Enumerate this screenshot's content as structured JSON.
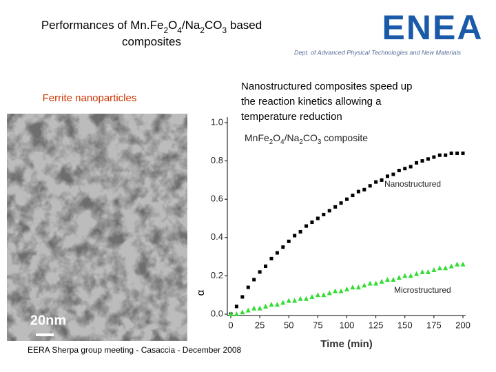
{
  "header": {
    "title_lines": [
      [
        "Performances of Mn.Fe",
        "2",
        "O",
        "4",
        "/Na",
        "2",
        "CO",
        "3",
        " based"
      ],
      [
        "composites"
      ]
    ],
    "logo": "ENEA",
    "dept": "Dept. of Advanced Physical Technologies and New Materials"
  },
  "image": {
    "caption": "Ferrite nanoparticles",
    "scale": "20nm"
  },
  "statement": [
    "Nanostructured composites speed up",
    "the reaction kinetics allowing a",
    "temperature reduction"
  ],
  "footer": "EERA Sherpa group meeting - Casaccia - December 2008",
  "chart_data": {
    "type": "scatter",
    "title_parts": [
      "MnFe",
      "2",
      "O",
      "4",
      "/Na",
      "2",
      "CO",
      "3",
      " composite"
    ],
    "x_label": "Time (min)",
    "y_label": "α",
    "x": [
      0,
      5,
      10,
      15,
      20,
      25,
      30,
      35,
      40,
      45,
      50,
      55,
      60,
      65,
      70,
      75,
      80,
      85,
      90,
      95,
      100,
      105,
      110,
      115,
      120,
      125,
      130,
      135,
      140,
      145,
      150,
      155,
      160,
      165,
      170,
      175,
      180,
      185,
      190,
      195,
      200
    ],
    "series": [
      {
        "name": "Nanostructured",
        "color": "#000000",
        "marker": "square",
        "values": [
          0,
          0.04,
          0.09,
          0.14,
          0.18,
          0.22,
          0.25,
          0.29,
          0.32,
          0.35,
          0.38,
          0.41,
          0.43,
          0.46,
          0.48,
          0.5,
          0.52,
          0.54,
          0.56,
          0.58,
          0.6,
          0.62,
          0.64,
          0.65,
          0.67,
          0.69,
          0.7,
          0.72,
          0.73,
          0.75,
          0.76,
          0.77,
          0.79,
          0.8,
          0.81,
          0.82,
          0.83,
          0.83,
          0.84,
          0.84,
          0.84
        ]
      },
      {
        "name": "Microstructured",
        "color": "#33dd33",
        "marker": "triangle",
        "values": [
          0,
          0,
          0.01,
          0.02,
          0.03,
          0.03,
          0.04,
          0.05,
          0.05,
          0.06,
          0.07,
          0.07,
          0.08,
          0.08,
          0.09,
          0.1,
          0.1,
          0.11,
          0.12,
          0.12,
          0.13,
          0.14,
          0.14,
          0.15,
          0.16,
          0.16,
          0.17,
          0.18,
          0.18,
          0.19,
          0.2,
          0.2,
          0.21,
          0.22,
          0.22,
          0.23,
          0.24,
          0.24,
          0.25,
          0.26,
          0.26
        ]
      }
    ],
    "xlim": [
      0,
      200
    ],
    "ylim": [
      0,
      1
    ],
    "xticks": [
      0,
      25,
      50,
      75,
      100,
      125,
      150,
      175,
      200
    ],
    "yticks": [
      {
        "value": 0,
        "label": "0.0"
      },
      0.2,
      0.4,
      0.6,
      0.8,
      {
        "value": 1,
        "label": "1.0"
      }
    ]
  }
}
